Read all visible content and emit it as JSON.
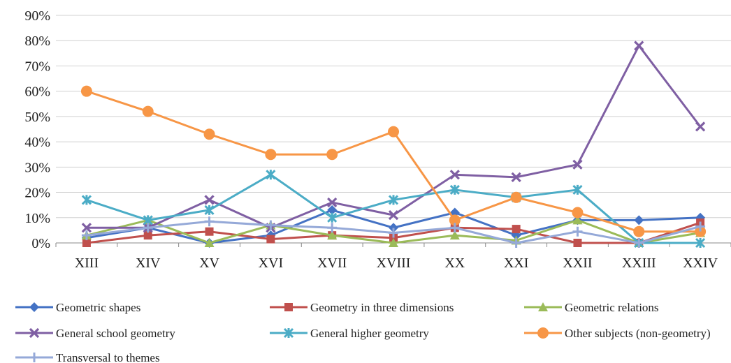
{
  "chart_data": {
    "type": "line",
    "categories": [
      "XIII",
      "XIV",
      "XV",
      "XVI",
      "XVII",
      "XVIII",
      "XX",
      "XXI",
      "XXII",
      "XXIII",
      "XXIV"
    ],
    "ylim": [
      0,
      90
    ],
    "yticks": [
      0,
      10,
      20,
      30,
      40,
      50,
      60,
      70,
      80,
      90
    ],
    "ytick_labels": [
      "0%",
      "10%",
      "20%",
      "30%",
      "40%",
      "50%",
      "60%",
      "70%",
      "80%",
      "90%"
    ],
    "grid": "horizontal",
    "legend_position": "bottom",
    "series": [
      {
        "name": "Geometric shapes",
        "color": "#4472C4",
        "marker": "diamond",
        "values": [
          2,
          6,
          0,
          3,
          13,
          6,
          12,
          3,
          9,
          9,
          10
        ]
      },
      {
        "name": "Geometry in three dimensions",
        "color": "#C0504D",
        "marker": "square",
        "values": [
          0,
          3,
          4.5,
          1.5,
          3,
          2,
          6,
          5.5,
          0,
          0,
          8
        ]
      },
      {
        "name": "Geometric relations",
        "color": "#9BBB59",
        "marker": "triangle",
        "values": [
          3,
          9,
          0,
          7,
          3,
          0,
          3,
          1,
          9,
          0,
          4
        ]
      },
      {
        "name": "General school geometry",
        "color": "#7F5FA3",
        "marker": "x",
        "values": [
          6,
          6,
          17,
          6,
          16,
          11,
          27,
          26,
          31,
          78,
          46
        ]
      },
      {
        "name": "General higher geometry",
        "color": "#4BACC6",
        "marker": "star",
        "values": [
          17,
          9,
          13,
          27,
          10,
          17,
          21,
          18,
          21,
          0,
          0
        ]
      },
      {
        "name": "Other subjects (non-geometry)",
        "color": "#F79646",
        "marker": "circle",
        "values": [
          60,
          52,
          43,
          35,
          35,
          44,
          9,
          18,
          12,
          4.5,
          4.5
        ]
      },
      {
        "name": "Transversal to themes",
        "color": "#95A9D8",
        "marker": "plus",
        "values": [
          3,
          6,
          8.5,
          7,
          6,
          4,
          6,
          0,
          4.5,
          0,
          6.5
        ]
      }
    ]
  }
}
